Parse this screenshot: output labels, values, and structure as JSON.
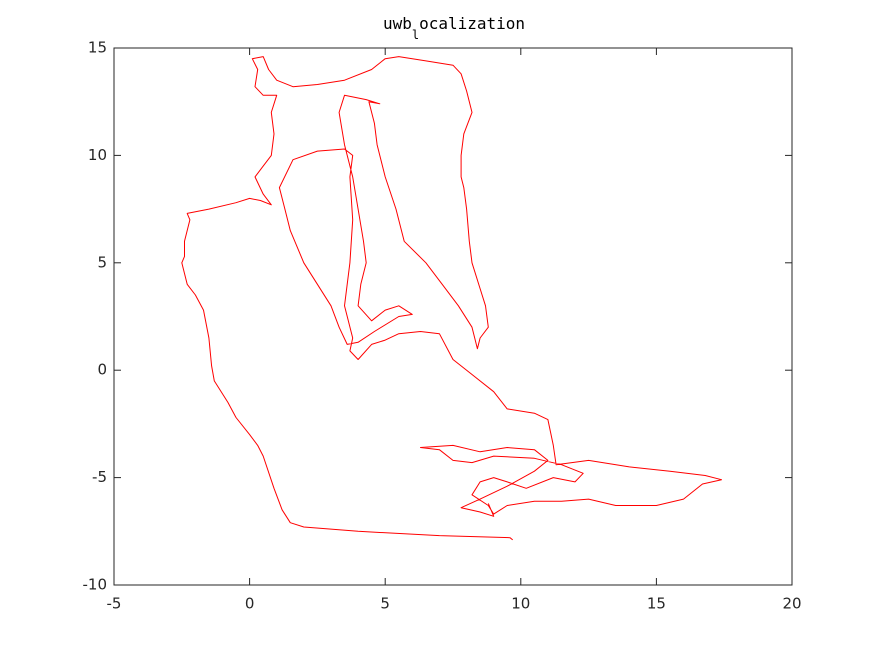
{
  "chart_data": {
    "type": "line",
    "title": [
      "uwb",
      "l",
      "ocalization"
    ],
    "color": "#ff0000",
    "xlim": [
      -5,
      20
    ],
    "ylim": [
      -10,
      15
    ],
    "xticks": [
      -5,
      0,
      5,
      10,
      15,
      20
    ],
    "yticks": [
      -10,
      -5,
      0,
      5,
      10,
      15
    ],
    "grid": false,
    "x": [
      9.7,
      9.6,
      7,
      4,
      2,
      1.5,
      1.2,
      0.9,
      0.5,
      0.3,
      0,
      -0.5,
      -0.8,
      -1.3,
      -1.4,
      -1.5,
      -1.7,
      -2,
      -2.3,
      -2.4,
      -2.5,
      -2.4,
      -2.4,
      -2.2,
      -2.3,
      -1.5,
      -0.5,
      0,
      0.4,
      0.8,
      0.5,
      0.2,
      0.5,
      0.8,
      0.9,
      0.8,
      1,
      0.5,
      0.2,
      0.3,
      0.1,
      0.5,
      0.7,
      1,
      1.6,
      2.5,
      3.5,
      4.5,
      5,
      5.5,
      6.5,
      7.5,
      7.8,
      8,
      8.2,
      7.9,
      7.8,
      7.8,
      7.9,
      8,
      8.1,
      8.2,
      8.5,
      8.7,
      8.8,
      8.5,
      8.4,
      8.2,
      7.7,
      7.1,
      6.5,
      5.7,
      5.4,
      5,
      4.7,
      4.6,
      4.4,
      4.8,
      4.3,
      3.5,
      3.3,
      3.5,
      3.8,
      4,
      4.2,
      4.3,
      4.1,
      4,
      4.5,
      5,
      5.5,
      6,
      5.5,
      4.6,
      4,
      3.6,
      3.3,
      3,
      2.5,
      2,
      1.5,
      1.3,
      1.1,
      1.6,
      2.5,
      3.5,
      3.8,
      3.7,
      3.8,
      3.7,
      3.6,
      3.5,
      3.8,
      3.7,
      4,
      4.5,
      5,
      5.5,
      6.3,
      7,
      7.5,
      8.2,
      9,
      9.5,
      10.5,
      11,
      11.2,
      11.3,
      12.5,
      14,
      15.5,
      16.8,
      17.4,
      16.7,
      16,
      15,
      13.5,
      12.5,
      11.5,
      10.5,
      9.5,
      9,
      8.8,
      8.2,
      8.5,
      9,
      9.5,
      10.2,
      11.2,
      12,
      12.3,
      11.5,
      10.5,
      9,
      8.2,
      7.5,
      7,
      6.3,
      7.5,
      8.5,
      9.5,
      10.5,
      11,
      10.5,
      9.5,
      8.5,
      7.8,
      8.5,
      9,
      8.8
    ],
    "values": [
      -7.9,
      -7.8,
      -7.7,
      -7.5,
      -7.3,
      -7.1,
      -6.5,
      -5.5,
      -4,
      -3.5,
      -3,
      -2.2,
      -1.5,
      -0.5,
      0.2,
      1.5,
      2.8,
      3.5,
      4,
      4.5,
      5,
      5.3,
      6,
      7,
      7.3,
      7.5,
      7.8,
      8,
      7.9,
      7.7,
      8.2,
      9,
      9.5,
      10,
      11,
      12,
      12.8,
      12.8,
      13.2,
      14,
      14.5,
      14.6,
      14,
      13.5,
      13.2,
      13.3,
      13.5,
      14,
      14.5,
      14.6,
      14.4,
      14.2,
      13.8,
      13,
      12,
      11,
      10,
      9,
      8.5,
      7.5,
      6,
      5,
      3.8,
      3,
      2,
      1.5,
      1,
      2,
      3,
      4,
      5,
      6,
      7.5,
      9,
      10.5,
      11.5,
      12.5,
      12.4,
      12.6,
      12.8,
      12,
      10.5,
      9,
      7.5,
      6,
      5,
      4,
      3,
      2.3,
      2.8,
      3,
      2.6,
      2.5,
      1.8,
      1.3,
      1.2,
      2,
      3,
      4,
      5,
      6.5,
      7.5,
      8.5,
      9.8,
      10.2,
      10.3,
      10,
      9,
      7,
      5,
      4,
      3,
      1.5,
      0.9,
      0.5,
      1.2,
      1.4,
      1.7,
      1.8,
      1.7,
      0.5,
      -0.2,
      -1,
      -1.8,
      -2,
      -2.3,
      -3.5,
      -4.4,
      -4.2,
      -4.5,
      -4.7,
      -4.9,
      -5.1,
      -5.3,
      -6,
      -6.3,
      -6.3,
      -6,
      -6.1,
      -6.1,
      -6.3,
      -6.7,
      -6.3,
      -5.8,
      -5.2,
      -5,
      -5.2,
      -5.5,
      -5,
      -5.2,
      -4.8,
      -4.4,
      -4.1,
      -4,
      -4.3,
      -4.2,
      -3.7,
      -3.6,
      -3.5,
      -3.8,
      -3.6,
      -3.7,
      -4.2,
      -4.7,
      -5.4,
      -6,
      -6.4,
      -6.6,
      -6.8,
      -6.2
    ]
  }
}
